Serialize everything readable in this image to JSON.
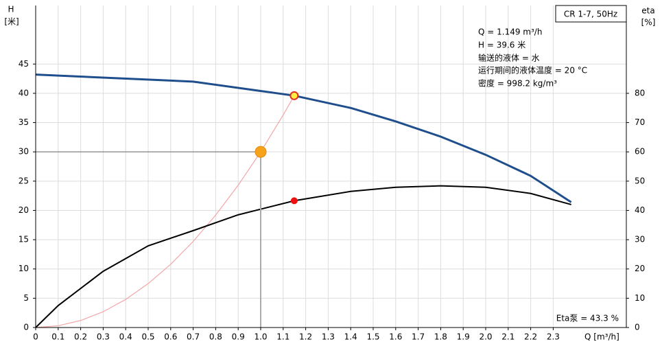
{
  "chart_data": {
    "type": "line",
    "title": "CR 1-7, 50Hz",
    "info": [
      "Q = 1.149 m³/h",
      "H = 39.6 米",
      "输送的液体 = 水",
      "运行期间的液体温度 = 20 °C",
      "密度 = 998.2 kg/m³"
    ],
    "eta_label": "Eta泵 = 43.3 %",
    "y_label": [
      "H",
      "[米]"
    ],
    "y2_label": [
      "eta",
      "[%]"
    ],
    "x_label": "Q [m³/h]",
    "xlim": [
      0,
      2.625
    ],
    "ylim": [
      0,
      55
    ],
    "y2lim": [
      0,
      110
    ],
    "xticks": [
      0,
      0.1,
      0.2,
      0.3,
      0.4,
      0.5,
      0.6,
      0.7,
      0.8,
      0.9,
      {
        "value": 1,
        "label": "1.0"
      },
      1.1,
      1.2,
      1.3,
      1.4,
      1.5,
      1.6,
      1.7,
      1.8,
      1.9,
      {
        "value": 2,
        "label": "2.0"
      },
      2.1,
      2.2,
      2.3
    ],
    "yticks": [
      0,
      5,
      10,
      15,
      20,
      25,
      30,
      35,
      40,
      45
    ],
    "y2ticks": [
      0,
      10,
      20,
      30,
      40,
      50,
      60,
      70,
      80
    ],
    "grid": true,
    "series": [
      {
        "color": "#1f4e8c",
        "x": [
          0,
          0.7,
          1.149,
          1.4,
          1.6,
          1.8,
          2.0,
          2.2,
          2.38
        ],
        "values": [
          43.2,
          42.0,
          39.6,
          37.5,
          35.2,
          32.6,
          29.5,
          25.9,
          21.4
        ]
      },
      {
        "color": "#f4a6a6",
        "x": [
          0,
          0.1,
          0.2,
          0.3,
          0.4,
          0.5,
          0.6,
          0.7,
          0.8,
          0.9,
          1.0,
          1.1,
          1.149
        ],
        "values": [
          0,
          0.3,
          1.2,
          2.7,
          4.8,
          7.5,
          10.8,
          14.7,
          19.2,
          24.3,
          30,
          36.3,
          39.6
        ]
      },
      {
        "color": "#000000",
        "axis": "y2",
        "x": [
          0,
          0.1,
          0.3,
          0.5,
          0.7,
          0.9,
          1.149,
          1.4,
          1.6,
          1.8,
          2.0,
          2.2,
          2.38
        ],
        "values": [
          0,
          7.5,
          19.2,
          27.9,
          33.1,
          38.5,
          43.3,
          46.5,
          47.9,
          48.4,
          47.9,
          45.8,
          42.0
        ]
      }
    ],
    "points": [
      {
        "x": 1.0,
        "y": 30,
        "color": "#f7a21b"
      },
      {
        "x": 1.149,
        "y": 39.6,
        "color": "#ffee44"
      },
      {
        "x": 1.149,
        "y": 43.3,
        "color": "#ee1111",
        "axis": "y2"
      }
    ]
  }
}
